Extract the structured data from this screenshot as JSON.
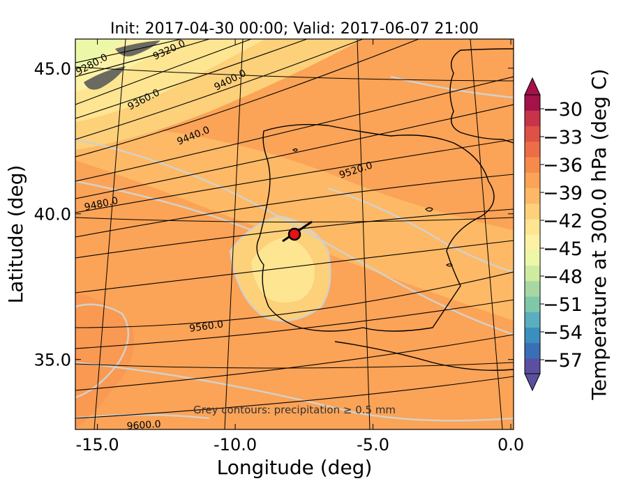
{
  "chart_data": {
    "type": "contour-map",
    "title": "Init: 2017-04-30 00:00; Valid: 2017-06-07 21:00",
    "xlabel": "Longitude (deg)",
    "ylabel": "Latitude (deg)",
    "xlim": [
      -15.8,
      0.1
    ],
    "ylim": [
      32.6,
      46.0
    ],
    "x_ticks": [
      {
        "value": -15.0,
        "label": "-15.0"
      },
      {
        "value": -10.0,
        "label": "-10.0"
      },
      {
        "value": -5.0,
        "label": "-5.0"
      },
      {
        "value": 0.0,
        "label": "0.0"
      }
    ],
    "y_ticks": [
      {
        "value": 35.0,
        "label": "35.0"
      },
      {
        "value": 40.0,
        "label": "40.0"
      },
      {
        "value": 45.0,
        "label": "45.0"
      }
    ],
    "annotation": "Grey contours: precipitation ≥ 0.5 mm",
    "geopotential_contours": [
      {
        "label": "9280.0"
      },
      {
        "label": "9320.0"
      },
      {
        "label": "9360.0"
      },
      {
        "label": "9400.0"
      },
      {
        "label": "9440.0"
      },
      {
        "label": "9480.0"
      },
      {
        "label": "9520.0"
      },
      {
        "label": "9560.0"
      },
      {
        "label": "9600.0"
      }
    ],
    "marker": {
      "lon": -7.6,
      "lat": 39.3,
      "color": "#e8101a"
    },
    "colorbar": {
      "label": "Temperature at 300.0 hPa (deg C)",
      "range": [
        -58.5,
        -28.5
      ],
      "ticks": [
        "−30",
        "−33",
        "−36",
        "−39",
        "−42",
        "−45",
        "−48",
        "−51",
        "−54",
        "−57"
      ],
      "tick_values": [
        -30,
        -33,
        -36,
        -39,
        -42,
        -45,
        -48,
        -51,
        -54,
        -57
      ],
      "colors_low_to_high": [
        "#5b4fa0",
        "#3a6fb5",
        "#3b8fbd",
        "#5aaec0",
        "#7fc8a8",
        "#a7d8a4",
        "#cfeba0",
        "#ecf7a8",
        "#fdf1a5",
        "#fee592",
        "#fdd07a",
        "#fdb966",
        "#fba357",
        "#f68a4d",
        "#ec6d47",
        "#dd5146",
        "#c7344a",
        "#a4124a"
      ]
    }
  }
}
